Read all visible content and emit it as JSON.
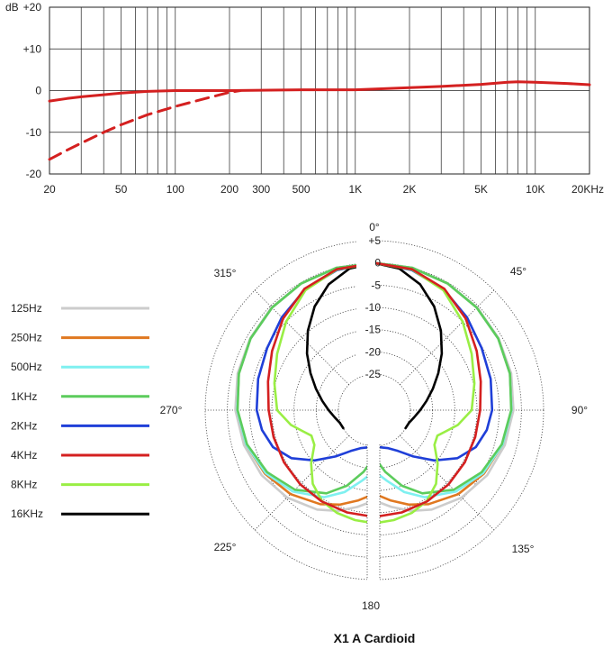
{
  "caption": "X1 A Cardioid",
  "chart_data": [
    {
      "type": "line",
      "ylabel": "dB",
      "xscale": "log",
      "xlim": [
        20,
        20000
      ],
      "ylim": [
        -20,
        20
      ],
      "grid": true,
      "xticks": [
        {
          "value": 20,
          "label": "20"
        },
        {
          "value": 50,
          "label": "50"
        },
        {
          "value": 100,
          "label": "100"
        },
        {
          "value": 200,
          "label": "200"
        },
        {
          "value": 300,
          "label": "300"
        },
        {
          "value": 500,
          "label": "500"
        },
        {
          "value": 1000,
          "label": "1K"
        },
        {
          "value": 2000,
          "label": "2K"
        },
        {
          "value": 5000,
          "label": "5K"
        },
        {
          "value": 10000,
          "label": "10K"
        },
        {
          "value": 20000,
          "label": "20KHz"
        }
      ],
      "yticks": [
        {
          "value": 20,
          "label": "+20"
        },
        {
          "value": 10,
          "label": "+10"
        },
        {
          "value": 0,
          "label": "0"
        },
        {
          "value": -10,
          "label": "-10"
        },
        {
          "value": -20,
          "label": "-20"
        }
      ],
      "series": [
        {
          "style": "solid",
          "color": "#d42020",
          "points": [
            [
              20,
              -2.5
            ],
            [
              25,
              -1.9
            ],
            [
              30,
              -1.5
            ],
            [
              40,
              -1.0
            ],
            [
              50,
              -0.6
            ],
            [
              70,
              -0.2
            ],
            [
              100,
              0.0
            ],
            [
              200,
              0.0
            ],
            [
              500,
              0.2
            ],
            [
              1000,
              0.2
            ],
            [
              1500,
              0.5
            ],
            [
              2000,
              0.7
            ],
            [
              3000,
              1.0
            ],
            [
              5000,
              1.5
            ],
            [
              7000,
              2.0
            ],
            [
              8000,
              2.1
            ],
            [
              10000,
              2.0
            ],
            [
              15000,
              1.7
            ],
            [
              20000,
              1.4
            ]
          ]
        },
        {
          "style": "dashed",
          "color": "#d42020",
          "points": [
            [
              20,
              -16.5
            ],
            [
              25,
              -14.3
            ],
            [
              30,
              -12.6
            ],
            [
              40,
              -10.0
            ],
            [
              50,
              -8.2
            ],
            [
              70,
              -5.8
            ],
            [
              100,
              -3.8
            ],
            [
              150,
              -1.8
            ],
            [
              200,
              -0.4
            ],
            [
              230,
              0.0
            ]
          ]
        }
      ]
    },
    {
      "type": "polar",
      "rticks": [
        {
          "value": 5,
          "label": "+5"
        },
        {
          "value": 0,
          "label": "0"
        },
        {
          "value": -5,
          "label": "-5"
        },
        {
          "value": -10,
          "label": "-10"
        },
        {
          "value": -15,
          "label": "-15"
        },
        {
          "value": -20,
          "label": "-20"
        },
        {
          "value": -25,
          "label": "-25"
        }
      ],
      "rlim": [
        -25,
        5
      ],
      "angle_labels": [
        {
          "angle": 0,
          "label": "0°"
        },
        {
          "angle": 45,
          "label": "45°"
        },
        {
          "angle": 90,
          "label": "90°"
        },
        {
          "angle": 135,
          "label": "135°"
        },
        {
          "angle": 180,
          "label": "180"
        },
        {
          "angle": 225,
          "label": "225°"
        },
        {
          "angle": 270,
          "label": "270°"
        },
        {
          "angle": 315,
          "label": "315°"
        }
      ],
      "series": [
        {
          "name": "125Hz",
          "color": "#cccccc",
          "points": [
            [
              0,
              0
            ],
            [
              15,
              0
            ],
            [
              30,
              -0.2
            ],
            [
              45,
              -0.4
            ],
            [
              60,
              -0.8
            ],
            [
              75,
              -1.2
            ],
            [
              90,
              -1.8
            ],
            [
              105,
              -2.7
            ],
            [
              120,
              -3.8
            ],
            [
              135,
              -5.3
            ],
            [
              150,
              -7.3
            ],
            [
              160,
              -9.0
            ],
            [
              170,
              -11
            ],
            [
              178,
              -12.5
            ]
          ]
        },
        {
          "name": "250Hz",
          "color": "#e07820",
          "points": [
            [
              0,
              0
            ],
            [
              15,
              0
            ],
            [
              30,
              -0.2
            ],
            [
              45,
              -0.5
            ],
            [
              60,
              -0.9
            ],
            [
              75,
              -1.5
            ],
            [
              90,
              -2.2
            ],
            [
              105,
              -3.2
            ],
            [
              120,
              -4.6
            ],
            [
              135,
              -6.4
            ],
            [
              150,
              -8.7
            ],
            [
              160,
              -10.5
            ],
            [
              170,
              -12.5
            ],
            [
              178,
              -14
            ]
          ]
        },
        {
          "name": "500Hz",
          "color": "#7ff0f0",
          "points": [
            [
              0,
              0
            ],
            [
              15,
              0
            ],
            [
              30,
              -0.2
            ],
            [
              45,
              -0.5
            ],
            [
              60,
              -0.9
            ],
            [
              75,
              -1.5
            ],
            [
              90,
              -2.2
            ],
            [
              105,
              -3.2
            ],
            [
              120,
              -4.8
            ],
            [
              135,
              -7.2
            ],
            [
              150,
              -10.5
            ],
            [
              160,
              -13.5
            ],
            [
              170,
              -17
            ],
            [
              178,
              -19
            ]
          ]
        },
        {
          "name": "1KHz",
          "color": "#5ccc5c",
          "points": [
            [
              0,
              0
            ],
            [
              15,
              0
            ],
            [
              30,
              -0.2
            ],
            [
              45,
              -0.5
            ],
            [
              60,
              -0.9
            ],
            [
              75,
              -1.5
            ],
            [
              90,
              -2.3
            ],
            [
              105,
              -3.4
            ],
            [
              120,
              -5.2
            ],
            [
              135,
              -7.8
            ],
            [
              150,
              -11.5
            ],
            [
              160,
              -15
            ],
            [
              170,
              -19
            ],
            [
              178,
              -22
            ]
          ]
        },
        {
          "name": "2KHz",
          "color": "#1f3fd8",
          "points": [
            [
              0,
              0
            ],
            [
              15,
              -0.5
            ],
            [
              30,
              -1.8
            ],
            [
              45,
              -3.6
            ],
            [
              60,
              -5.2
            ],
            [
              75,
              -6.0
            ],
            [
              90,
              -6.6
            ],
            [
              100,
              -7.4
            ],
            [
              110,
              -8.8
            ],
            [
              120,
              -11.5
            ],
            [
              130,
              -15.5
            ],
            [
              140,
              -19.5
            ],
            [
              150,
              -22.5
            ],
            [
              160,
              -24
            ],
            [
              170,
              -24.6
            ],
            [
              178,
              -24.8
            ]
          ]
        },
        {
          "name": "4KHz",
          "color": "#d42020",
          "points": [
            [
              0,
              0
            ],
            [
              15,
              -0.3
            ],
            [
              30,
              -1.6
            ],
            [
              45,
              -4.0
            ],
            [
              60,
              -6.5
            ],
            [
              75,
              -8.3
            ],
            [
              90,
              -9.3
            ],
            [
              105,
              -9.6
            ],
            [
              120,
              -9.6
            ],
            [
              135,
              -9.5
            ],
            [
              150,
              -9.4
            ],
            [
              165,
              -9.3
            ],
            [
              178,
              -9.2
            ]
          ]
        },
        {
          "name": "8KHz",
          "color": "#99ee44",
          "points": [
            [
              0,
              0
            ],
            [
              15,
              -0.4
            ],
            [
              30,
              -2.0
            ],
            [
              45,
              -5.0
            ],
            [
              60,
              -7.8
            ],
            [
              75,
              -9.8
            ],
            [
              90,
              -11.2
            ],
            [
              100,
              -14.0
            ],
            [
              107,
              -16.5
            ],
            [
              112,
              -17.8
            ],
            [
              120,
              -17.5
            ],
            [
              130,
              -14.5
            ],
            [
              140,
              -11.5
            ],
            [
              150,
              -9.5
            ],
            [
              160,
              -8.5
            ],
            [
              170,
              -8.0
            ],
            [
              178,
              -7.8
            ]
          ]
        },
        {
          "name": "16KHz",
          "color": "#000000",
          "points": [
            [
              0,
              0
            ],
            [
              10,
              -0.8
            ],
            [
              20,
              -3.0
            ],
            [
              30,
              -6.2
            ],
            [
              40,
              -9.8
            ],
            [
              50,
              -13.3
            ],
            [
              60,
              -16.5
            ],
            [
              70,
              -19.1
            ],
            [
              80,
              -21.2
            ],
            [
              90,
              -22.8
            ],
            [
              100,
              -24.0
            ],
            [
              110,
              -24.8
            ],
            [
              120,
              -25.0
            ]
          ]
        }
      ]
    }
  ]
}
